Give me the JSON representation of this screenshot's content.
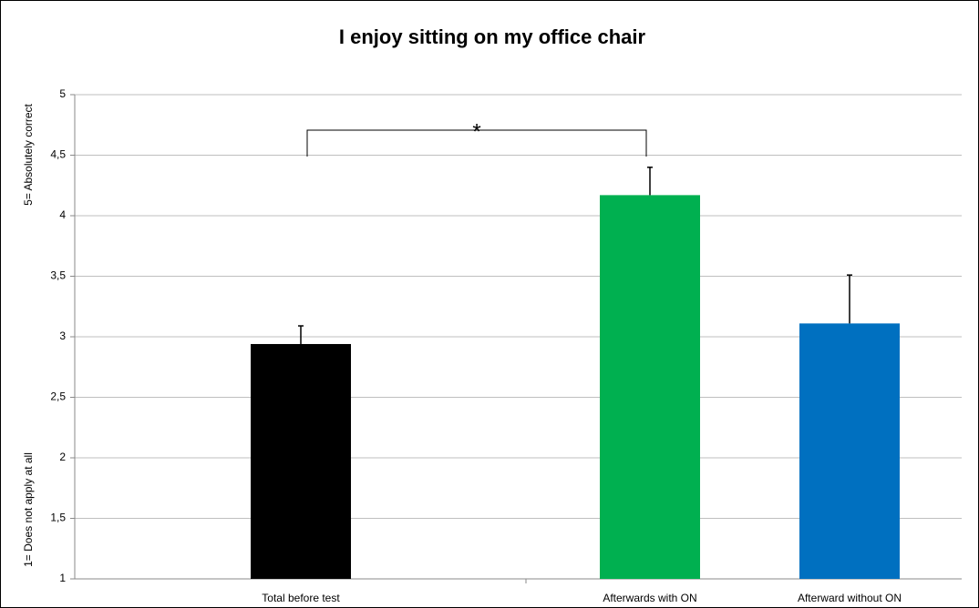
{
  "chart_data": {
    "type": "bar",
    "title": "I enjoy sitting on my office chair",
    "y_label_top": "5= Absolutely correct",
    "y_label_bottom": "1= Does not apply at all",
    "annotation": "*",
    "categories": [
      "Total before test",
      "Afterwards with ON",
      "Afterward without ON"
    ],
    "values": [
      2.94,
      4.17,
      3.11
    ],
    "errors": [
      0.15,
      0.23,
      0.4
    ],
    "colors": [
      "#000000",
      "#00b050",
      "#0070c0"
    ],
    "ylim": [
      1,
      5
    ],
    "yticks": [
      1,
      {
        "value": 1.5,
        "label": "1,5"
      },
      2,
      {
        "value": 2.5,
        "label": "2,5"
      },
      3,
      {
        "value": 3.5,
        "label": "3,5"
      },
      4,
      {
        "value": 4.5,
        "label": "4,5"
      },
      5
    ],
    "grid": true
  }
}
